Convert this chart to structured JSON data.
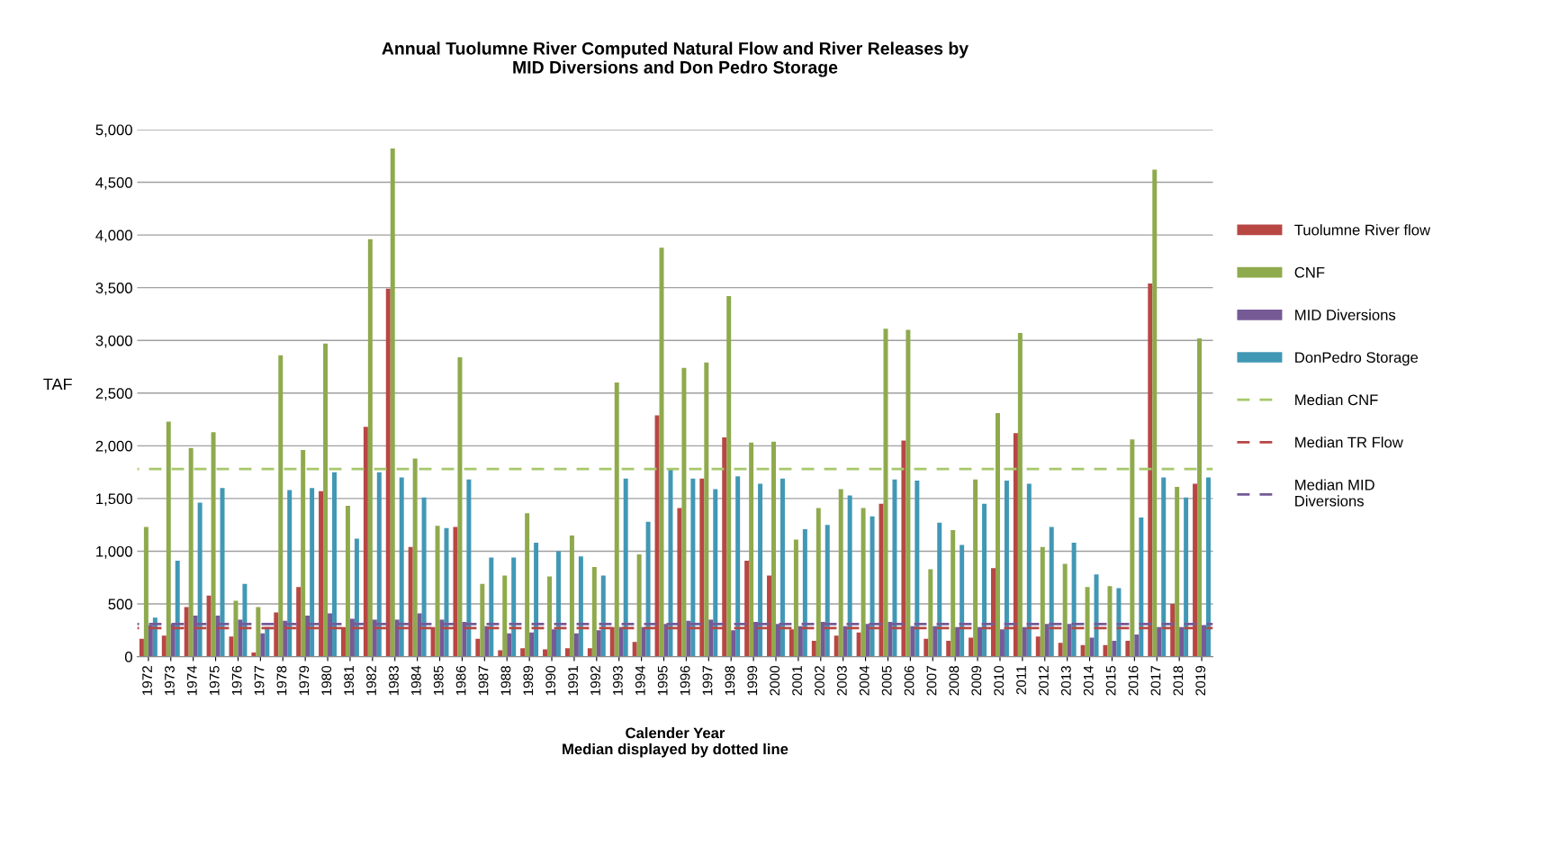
{
  "chart_data": {
    "type": "bar",
    "title": "Annual Tuolumne River Computed Natural Flow and River Releases by\nMID Diversions and Don Pedro Storage",
    "xlabel": "Calender Year\nMedian displayed by dotted line",
    "ylabel": "TAF",
    "categories": [
      "1972",
      "1973",
      "1974",
      "1975",
      "1976",
      "1977",
      "1978",
      "1979",
      "1980",
      "1981",
      "1982",
      "1983",
      "1984",
      "1985",
      "1986",
      "1987",
      "1988",
      "1989",
      "1990",
      "1991",
      "1992",
      "1993",
      "1994",
      "1995",
      "1996",
      "1997",
      "1998",
      "1999",
      "2000",
      "2001",
      "2002",
      "2003",
      "2004",
      "2005",
      "2006",
      "2007",
      "2008",
      "2009",
      "2010",
      "2011",
      "2012",
      "2013",
      "2014",
      "2015",
      "2016",
      "2017",
      "2018",
      "2019"
    ],
    "series": [
      {
        "name": "Tuolumne River flow",
        "color": "#b84744",
        "values": [
          170,
          200,
          470,
          580,
          190,
          40,
          420,
          660,
          1570,
          280,
          2180,
          3490,
          1040,
          280,
          1230,
          170,
          60,
          80,
          70,
          80,
          80,
          280,
          140,
          2290,
          1410,
          1690,
          2080,
          910,
          770,
          260,
          150,
          200,
          230,
          1450,
          2050,
          170,
          150,
          180,
          840,
          2120,
          190,
          130,
          110,
          110,
          150,
          3540,
          500,
          1640
        ]
      },
      {
        "name": "CNF",
        "color": "#8faa4d",
        "values": [
          1230,
          2230,
          1980,
          2130,
          530,
          470,
          2860,
          1960,
          2970,
          1430,
          3960,
          4820,
          1880,
          1240,
          2840,
          690,
          770,
          1360,
          760,
          1150,
          850,
          2600,
          970,
          3880,
          2740,
          2790,
          3420,
          2030,
          2040,
          1110,
          1410,
          1590,
          1410,
          3110,
          3100,
          830,
          1200,
          1680,
          2310,
          3070,
          1040,
          880,
          660,
          670,
          2060,
          4620,
          1610,
          3020
        ]
      },
      {
        "name": "MID Diversions",
        "color": "#765a96",
        "values": [
          300,
          310,
          390,
          390,
          350,
          220,
          340,
          390,
          410,
          360,
          350,
          350,
          410,
          350,
          330,
          290,
          220,
          230,
          260,
          220,
          250,
          280,
          280,
          310,
          340,
          350,
          250,
          330,
          310,
          290,
          330,
          290,
          310,
          330,
          290,
          290,
          280,
          280,
          260,
          280,
          310,
          310,
          180,
          150,
          210,
          280,
          280,
          300
        ]
      },
      {
        "name": "DonPedro Storage",
        "color": "#4198b5",
        "values": [
          370,
          910,
          1460,
          1600,
          690,
          280,
          1580,
          1600,
          1750,
          1120,
          1750,
          1700,
          1510,
          1220,
          1680,
          940,
          940,
          1080,
          1000,
          950,
          770,
          1690,
          1280,
          1780,
          1690,
          1590,
          1710,
          1640,
          1690,
          1210,
          1250,
          1530,
          1330,
          1680,
          1670,
          1270,
          1060,
          1450,
          1670,
          1640,
          1230,
          1080,
          780,
          650,
          1320,
          1700,
          1510,
          1700
        ]
      }
    ],
    "ref_lines": [
      {
        "axis": "y",
        "value": 1780,
        "label": "Median CNF",
        "color": "#a6c86a",
        "line_style": "dashed"
      },
      {
        "axis": "y",
        "value": 270,
        "label": "Median TR Flow",
        "color": "#b84744",
        "line_style": "dashed"
      },
      {
        "axis": "y",
        "value": 310,
        "label": "Median MID Diversions",
        "color": "#765a96",
        "line_style": "dashed"
      }
    ],
    "ylim": [
      0,
      5000
    ],
    "yticks": [
      0,
      {
        "value": 500,
        "label": "500"
      },
      {
        "value": 1000,
        "label": "1,000"
      },
      {
        "value": 1500,
        "label": "1,500"
      },
      {
        "value": 2000,
        "label": "2,000"
      },
      {
        "value": 2500,
        "label": "2,500"
      },
      {
        "value": 3000,
        "label": "3,000"
      },
      {
        "value": 3500,
        "label": "3,500"
      },
      {
        "value": 4000,
        "label": "4,000"
      },
      {
        "value": 4500,
        "label": "4,500"
      },
      {
        "value": 5000,
        "label": "5,000"
      }
    ],
    "grid": "y",
    "legend": "right"
  }
}
